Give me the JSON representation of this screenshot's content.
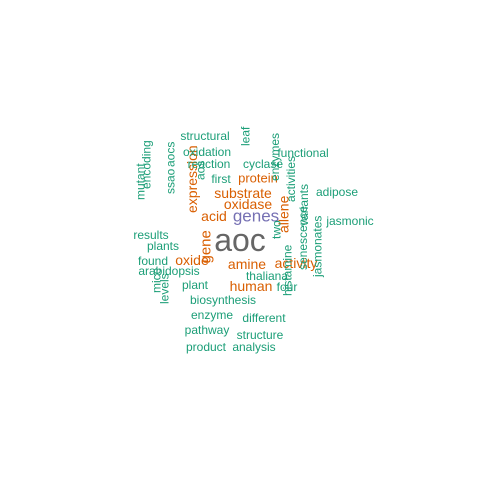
{
  "colors": {
    "tier1": "#666666",
    "tier2": "#7570b3",
    "tier3": "#d95f02",
    "tier4": "#1b9e77"
  },
  "words": [
    {
      "text": "aoc",
      "color": "tier1",
      "orientation": "horizontal"
    },
    {
      "text": "genes",
      "color": "tier2",
      "orientation": "horizontal"
    },
    {
      "text": "oxidase",
      "color": "tier3",
      "orientation": "horizontal"
    },
    {
      "text": "substrate",
      "color": "tier3",
      "orientation": "horizontal"
    },
    {
      "text": "acid",
      "color": "tier3",
      "orientation": "horizontal"
    },
    {
      "text": "protein",
      "color": "tier3",
      "orientation": "horizontal"
    },
    {
      "text": "amine",
      "color": "tier3",
      "orientation": "horizontal"
    },
    {
      "text": "activity",
      "color": "tier3",
      "orientation": "horizontal"
    },
    {
      "text": "human",
      "color": "tier3",
      "orientation": "horizontal"
    },
    {
      "text": "oxide",
      "color": "tier3",
      "orientation": "horizontal"
    },
    {
      "text": "expression",
      "color": "tier3",
      "orientation": "vertical"
    },
    {
      "text": "gene",
      "color": "tier3",
      "orientation": "vertical"
    },
    {
      "text": "allene",
      "color": "tier3",
      "orientation": "vertical"
    },
    {
      "text": "structural",
      "color": "tier4",
      "orientation": "horizontal"
    },
    {
      "text": "oxidation",
      "color": "tier4",
      "orientation": "horizontal"
    },
    {
      "text": "reaction",
      "color": "tier4",
      "orientation": "horizontal"
    },
    {
      "text": "cyclase",
      "color": "tier4",
      "orientation": "horizontal"
    },
    {
      "text": "functional",
      "color": "tier4",
      "orientation": "horizontal"
    },
    {
      "text": "first",
      "color": "tier4",
      "orientation": "horizontal"
    },
    {
      "text": "adipose",
      "color": "tier4",
      "orientation": "horizontal"
    },
    {
      "text": "jasmonic",
      "color": "tier4",
      "orientation": "horizontal"
    },
    {
      "text": "results",
      "color": "tier4",
      "orientation": "horizontal"
    },
    {
      "text": "plants",
      "color": "tier4",
      "orientation": "horizontal"
    },
    {
      "text": "found",
      "color": "tier4",
      "orientation": "horizontal"
    },
    {
      "text": "arabidopsis",
      "color": "tier4",
      "orientation": "horizontal"
    },
    {
      "text": "thaliana",
      "color": "tier4",
      "orientation": "horizontal"
    },
    {
      "text": "plant",
      "color": "tier4",
      "orientation": "horizontal"
    },
    {
      "text": "four",
      "color": "tier4",
      "orientation": "horizontal"
    },
    {
      "text": "biosynthesis",
      "color": "tier4",
      "orientation": "horizontal"
    },
    {
      "text": "enzyme",
      "color": "tier4",
      "orientation": "horizontal"
    },
    {
      "text": "different",
      "color": "tier4",
      "orientation": "horizontal"
    },
    {
      "text": "pathway",
      "color": "tier4",
      "orientation": "horizontal"
    },
    {
      "text": "structure",
      "color": "tier4",
      "orientation": "horizontal"
    },
    {
      "text": "product",
      "color": "tier4",
      "orientation": "horizontal"
    },
    {
      "text": "analysis",
      "color": "tier4",
      "orientation": "horizontal"
    },
    {
      "text": "leaf",
      "color": "tier4",
      "orientation": "vertical"
    },
    {
      "text": "aocs",
      "color": "tier4",
      "orientation": "vertical"
    },
    {
      "text": "aos",
      "color": "tier4",
      "orientation": "vertical"
    },
    {
      "text": "ssao",
      "color": "tier4",
      "orientation": "vertical"
    },
    {
      "text": "encoding",
      "color": "tier4",
      "orientation": "vertical"
    },
    {
      "text": "mutant",
      "color": "tier4",
      "orientation": "vertical"
    },
    {
      "text": "enzymes",
      "color": "tier4",
      "orientation": "vertical"
    },
    {
      "text": "activities",
      "color": "tier4",
      "orientation": "vertical"
    },
    {
      "text": "variants",
      "color": "tier4",
      "orientation": "vertical"
    },
    {
      "text": "two",
      "color": "tier4",
      "orientation": "vertical"
    },
    {
      "text": "senescence",
      "color": "tier4",
      "orientation": "vertical"
    },
    {
      "text": "jasmonates",
      "color": "tier4",
      "orientation": "vertical"
    },
    {
      "text": "histamine",
      "color": "tier4",
      "orientation": "vertical"
    },
    {
      "text": "mice",
      "color": "tier4",
      "orientation": "vertical"
    },
    {
      "text": "levels",
      "color": "tier4",
      "orientation": "vertical"
    }
  ]
}
